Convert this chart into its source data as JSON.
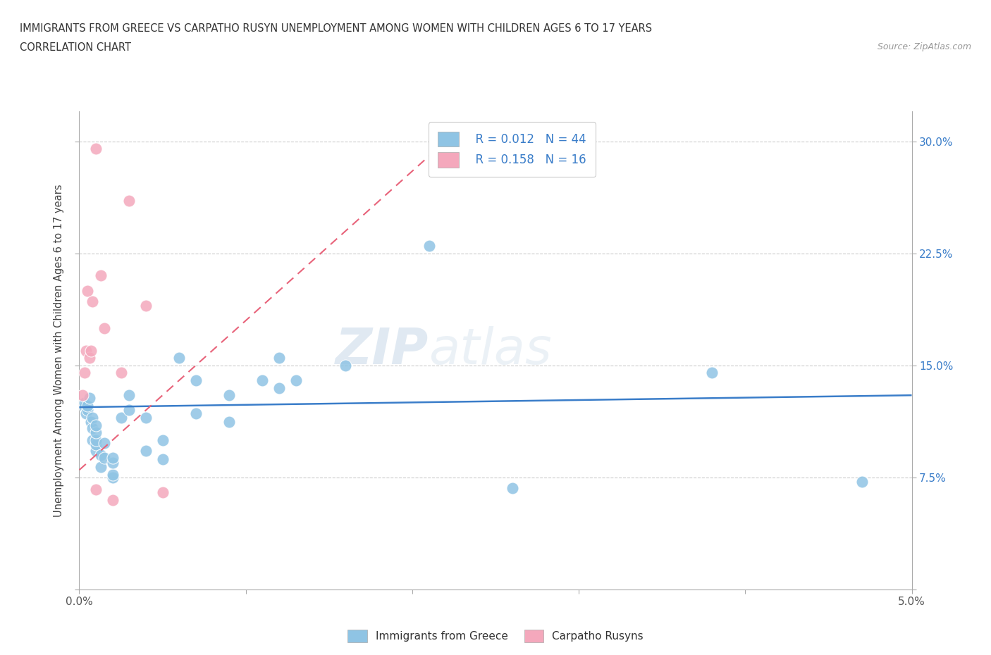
{
  "title_line1": "IMMIGRANTS FROM GREECE VS CARPATHO RUSYN UNEMPLOYMENT AMONG WOMEN WITH CHILDREN AGES 6 TO 17 YEARS",
  "title_line2": "CORRELATION CHART",
  "source": "Source: ZipAtlas.com",
  "ylabel": "Unemployment Among Women with Children Ages 6 to 17 years",
  "xlim": [
    0.0,
    0.05
  ],
  "ylim": [
    0.0,
    0.32
  ],
  "x_ticks": [
    0.0,
    0.01,
    0.02,
    0.03,
    0.04,
    0.05
  ],
  "x_tick_labels": [
    "0.0%",
    "",
    "",
    "",
    "",
    "5.0%"
  ],
  "y_ticks": [
    0.0,
    0.075,
    0.15,
    0.225,
    0.3
  ],
  "y_tick_labels_left": [
    "",
    "",
    "",
    "",
    ""
  ],
  "y_tick_labels_right": [
    "",
    "7.5%",
    "15.0%",
    "22.5%",
    "30.0%"
  ],
  "legend_r1": "R = 0.012",
  "legend_n1": "N = 44",
  "legend_r2": "R = 0.158",
  "legend_n2": "N = 16",
  "color_blue": "#8fc4e4",
  "color_pink": "#f4a8bc",
  "color_blue_line": "#3a7dc9",
  "color_pink_line": "#e8637a",
  "color_dashed_line": "#d4a0b0",
  "color_grid": "#cccccc",
  "watermark_zip": "ZIP",
  "watermark_atlas": "atlas",
  "background_color": "#ffffff",
  "greece_x": [
    0.0003,
    0.0003,
    0.0004,
    0.0005,
    0.0005,
    0.0006,
    0.0007,
    0.0008,
    0.0008,
    0.0008,
    0.001,
    0.001,
    0.001,
    0.001,
    0.001,
    0.0013,
    0.0013,
    0.0015,
    0.0015,
    0.002,
    0.002,
    0.002,
    0.002,
    0.0025,
    0.003,
    0.003,
    0.004,
    0.004,
    0.005,
    0.005,
    0.006,
    0.007,
    0.007,
    0.009,
    0.009,
    0.011,
    0.012,
    0.012,
    0.013,
    0.016,
    0.021,
    0.026,
    0.038,
    0.047
  ],
  "greece_y": [
    0.122,
    0.125,
    0.118,
    0.12,
    0.123,
    0.128,
    0.112,
    0.1,
    0.108,
    0.115,
    0.093,
    0.097,
    0.1,
    0.105,
    0.11,
    0.082,
    0.09,
    0.088,
    0.098,
    0.075,
    0.077,
    0.085,
    0.088,
    0.115,
    0.13,
    0.12,
    0.093,
    0.115,
    0.1,
    0.087,
    0.155,
    0.118,
    0.14,
    0.13,
    0.112,
    0.14,
    0.155,
    0.135,
    0.14,
    0.15,
    0.23,
    0.068,
    0.145,
    0.072
  ],
  "rusyn_x": [
    0.0002,
    0.0003,
    0.0004,
    0.0005,
    0.0006,
    0.0007,
    0.0008,
    0.001,
    0.001,
    0.0013,
    0.0015,
    0.002,
    0.0025,
    0.003,
    0.004,
    0.005
  ],
  "rusyn_y": [
    0.13,
    0.145,
    0.16,
    0.2,
    0.155,
    0.16,
    0.193,
    0.067,
    0.295,
    0.21,
    0.175,
    0.06,
    0.145,
    0.26,
    0.19,
    0.065
  ]
}
